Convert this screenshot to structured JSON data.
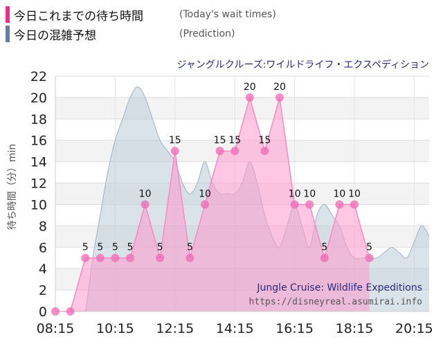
{
  "legend": {
    "today_label_jp": "今日これまでの待ち時間",
    "today_label_en": "(Today's wait times)",
    "prediction_label_jp": "今日の混雑予想",
    "prediction_label_en": "(Prediction)"
  },
  "colors": {
    "today_line": "#ff88c4",
    "today_fill": "#ff99cc",
    "today_point": "#ee6ab4",
    "today_swatch": "#ee2a8a",
    "prediction_line": "#a9bccc",
    "prediction_fill": "#bccbd8",
    "prediction_swatch": "#6b7ba8",
    "attraction_title": "#2a2a7a"
  },
  "watermark": {
    "line1": "Jungle Cruise: Wildlife Expeditions",
    "line2": "https://disneyreal.asumirai.info"
  },
  "chart_data": {
    "type": "area",
    "title": "ジャングルクルーズ:ワイルドライフ・エクスペディション",
    "xlabel": "",
    "ylabel": "待ち時間（分）min",
    "ylim": [
      0,
      22
    ],
    "yticks": [
      0,
      2,
      4,
      6,
      8,
      10,
      12,
      14,
      16,
      18,
      20,
      22
    ],
    "xlim": [
      495,
      1245
    ],
    "xticks": [
      {
        "value": 495,
        "label": "08:15"
      },
      {
        "value": 615,
        "label": "10:15"
      },
      {
        "value": 735,
        "label": "12:15"
      },
      {
        "value": 855,
        "label": "14:15"
      },
      {
        "value": 975,
        "label": "16:15"
      },
      {
        "value": 1095,
        "label": "18:15"
      },
      {
        "value": 1215,
        "label": "20:15"
      }
    ],
    "series": [
      {
        "name": "今日の混雑予想",
        "x": [
          510,
          525,
          540,
          555,
          570,
          585,
          600,
          615,
          630,
          645,
          660,
          675,
          690,
          705,
          720,
          735,
          750,
          765,
          780,
          795,
          810,
          825,
          840,
          855,
          870,
          885,
          900,
          915,
          930,
          945,
          960,
          975,
          990,
          1005,
          1020,
          1035,
          1050,
          1065,
          1080,
          1095,
          1110,
          1125,
          1140,
          1155,
          1170,
          1185,
          1200,
          1215,
          1230,
          1245
        ],
        "values": [
          0,
          0,
          0,
          0,
          5,
          9,
          13,
          16,
          18,
          20,
          21,
          20,
          18,
          16,
          15,
          14,
          12,
          11,
          12,
          14,
          12,
          11,
          11,
          11,
          12,
          14,
          12,
          9,
          7,
          6,
          8,
          10,
          8,
          6,
          9,
          10,
          9,
          8,
          6,
          5,
          5,
          5,
          5,
          5.5,
          6,
          5.5,
          5,
          6.5,
          8,
          7
        ]
      },
      {
        "name": "今日これまでの待ち時間",
        "x": [
          495,
          525,
          555,
          585,
          615,
          645,
          675,
          705,
          735,
          765,
          795,
          825,
          855,
          885,
          915,
          945,
          975,
          1005,
          1035,
          1065,
          1095,
          1125
        ],
        "values": [
          0,
          0,
          5,
          5,
          5,
          5,
          10,
          5,
          15,
          5,
          10,
          15,
          15,
          20,
          15,
          20,
          10,
          10,
          5,
          10,
          10,
          5
        ],
        "labels": [
          "",
          "",
          "5",
          "5",
          "5",
          "5",
          "10",
          "5",
          "15",
          "5",
          "10",
          "15",
          "15",
          "20",
          "15",
          "20",
          "10",
          "10",
          "5",
          "10",
          "10",
          "5"
        ]
      }
    ],
    "grid": true,
    "legend": "top-left"
  }
}
